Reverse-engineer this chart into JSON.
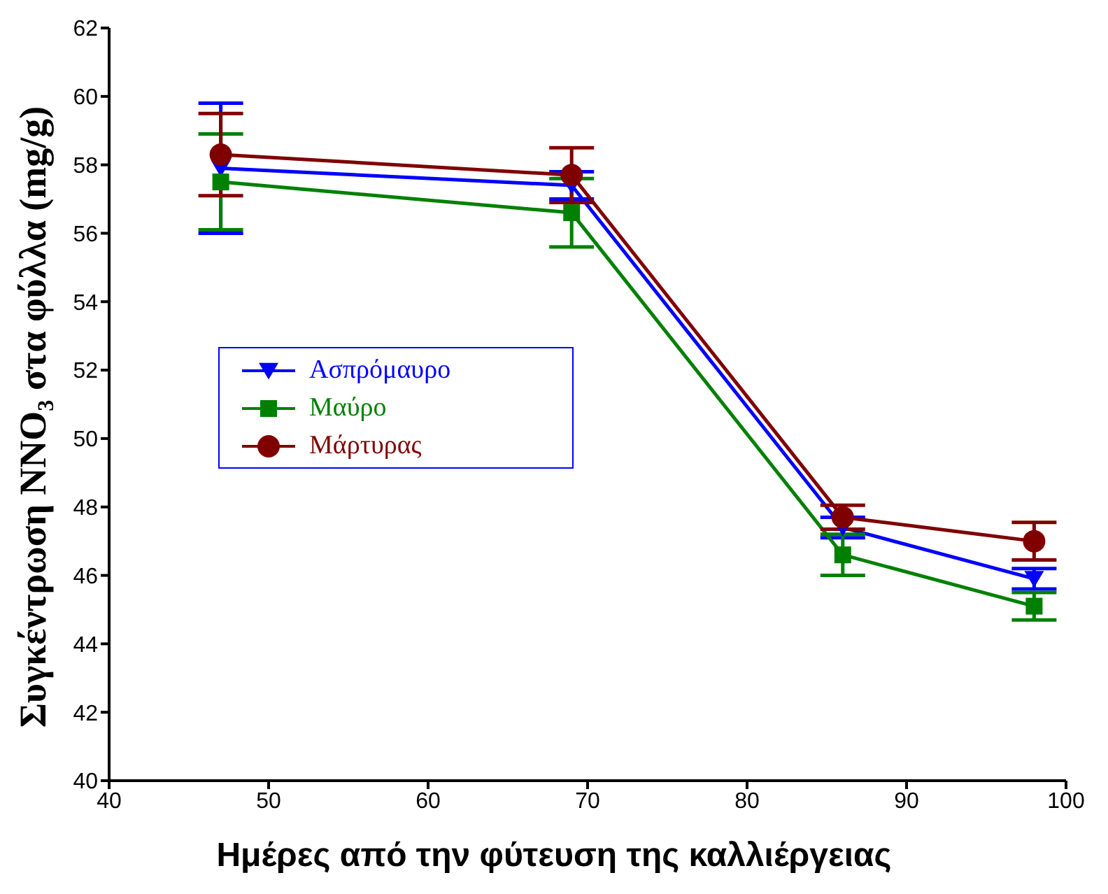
{
  "chart_data": {
    "type": "line",
    "xlabel": "Ημέρες από την φύτευση της καλλιέργειας",
    "ylabel": "Συγκέντρωση NNO₃ στα φύλλα (mg/g)",
    "x": [
      47,
      69,
      86,
      98
    ],
    "series": [
      {
        "name": "Ασπρόμαυρο",
        "color": "#0000ff",
        "marker": "triangle",
        "values": [
          57.9,
          57.4,
          47.4,
          45.9
        ],
        "errors": [
          1.9,
          0.4,
          0.3,
          0.3
        ]
      },
      {
        "name": "Μαύρο",
        "color": "#008000",
        "marker": "square",
        "values": [
          57.5,
          56.6,
          46.6,
          45.1
        ],
        "errors": [
          1.4,
          1.0,
          0.6,
          0.4
        ]
      },
      {
        "name": "Μάρτυρας",
        "color": "#800000",
        "marker": "circle",
        "values": [
          58.3,
          57.7,
          47.7,
          47.0
        ],
        "errors": [
          1.2,
          0.8,
          0.35,
          0.55
        ]
      }
    ],
    "xlim": [
      40,
      100
    ],
    "xticks": [
      40,
      50,
      60,
      70,
      80,
      90,
      100
    ],
    "ylim": [
      40,
      62
    ],
    "yticks": [
      40,
      42,
      44,
      46,
      48,
      50,
      52,
      54,
      56,
      58,
      60,
      62
    ],
    "grid": false,
    "legend": "left"
  }
}
